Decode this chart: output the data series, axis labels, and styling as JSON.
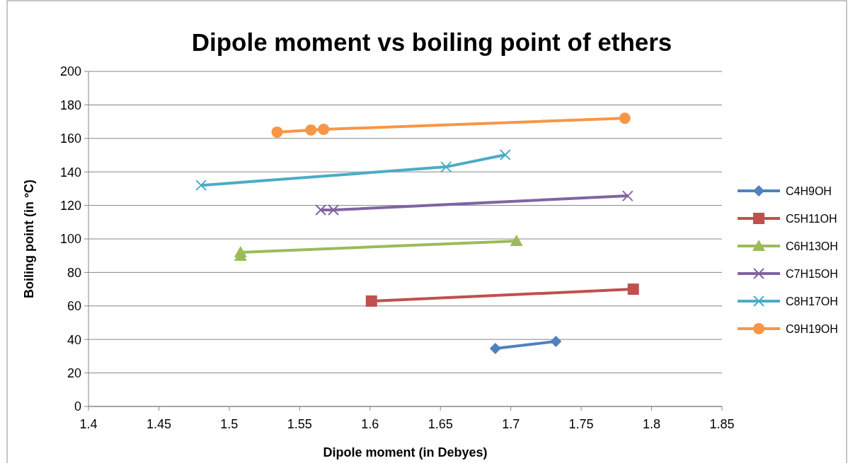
{
  "chart_data": {
    "type": "line",
    "title": "Dipole moment vs boiling point of ethers",
    "xlabel": "Dipole moment (in Debyes)",
    "ylabel": "Boiling point (in °C)",
    "xlim": [
      1.4,
      1.85
    ],
    "xticks": [
      1.4,
      1.45,
      1.5,
      1.55,
      1.6,
      1.65,
      1.7,
      1.75,
      1.8,
      1.85
    ],
    "ylim": [
      0,
      200
    ],
    "yticks": [
      0,
      20,
      40,
      60,
      80,
      100,
      120,
      140,
      160,
      180,
      200
    ],
    "grid": "y",
    "legend": "right",
    "series": [
      {
        "name": "C4H9OH",
        "color": "#4f81bd",
        "marker": "diamond",
        "x": [
          1.689,
          1.732
        ],
        "values": [
          34.6,
          38.8
        ]
      },
      {
        "name": "C5H11OH",
        "color": "#c0504d",
        "marker": "square",
        "x": [
          1.601,
          1.787
        ],
        "values": [
          62.9,
          70
        ]
      },
      {
        "name": "C6H13OH",
        "color": "#9bbb59",
        "marker": "triangle",
        "x": [
          1.508,
          1.508,
          1.704
        ],
        "values": [
          89.9,
          92,
          98.7
        ]
      },
      {
        "name": "C7H15OH",
        "color": "#8064a2",
        "marker": "cross",
        "x": [
          1.565,
          1.574,
          1.783
        ],
        "values": [
          117.3,
          117.3,
          125.7
        ]
      },
      {
        "name": "C8H17OH",
        "color": "#4bacc6",
        "marker": "cross",
        "x": [
          1.48,
          1.654,
          1.696
        ],
        "values": [
          132,
          143,
          150.2
        ]
      },
      {
        "name": "C9H19OH",
        "color": "#f79646",
        "marker": "circle",
        "x": [
          1.534,
          1.558,
          1.567,
          1.781
        ],
        "values": [
          163.7,
          165,
          165.4,
          172
        ]
      }
    ]
  }
}
